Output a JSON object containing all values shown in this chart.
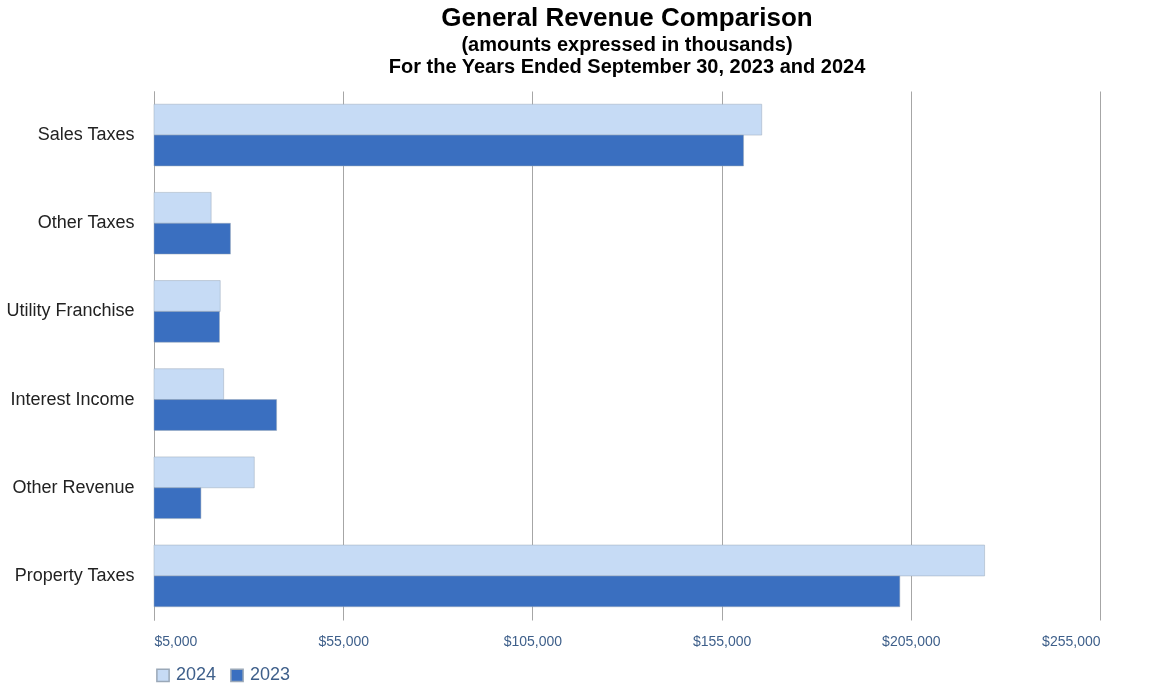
{
  "chart_data": {
    "type": "bar",
    "orientation": "horizontal",
    "title": "General Revenue Comparison",
    "subtitle": "(amounts expressed in thousands)\nFor the Years Ended September 30, 2023 and 2024",
    "categories": [
      "Sales Taxes",
      "Other Taxes",
      "Utility Franchise",
      "Interest Income",
      "Other Revenue",
      "Property Taxes"
    ],
    "series": [
      {
        "name": "2024",
        "color": "#c6dbf5",
        "values": [
          165600,
          20100,
          22500,
          23400,
          31500,
          224500
        ]
      },
      {
        "name": "2023",
        "color": "#3a6fc0",
        "values": [
          160800,
          25200,
          22300,
          37400,
          17400,
          202100
        ]
      }
    ],
    "xlim": [
      5000,
      255000
    ],
    "xticks": [
      {
        "value": 5000,
        "label": "$5,000"
      },
      {
        "value": 55000,
        "label": "$55,000"
      },
      {
        "value": 105000,
        "label": "$105,000"
      },
      {
        "value": 155000,
        "label": "$155,000"
      },
      {
        "value": 205000,
        "label": "$205,000"
      },
      {
        "value": 255000,
        "label": "$255,000"
      }
    ],
    "grid": "x",
    "legend": "bottom"
  }
}
